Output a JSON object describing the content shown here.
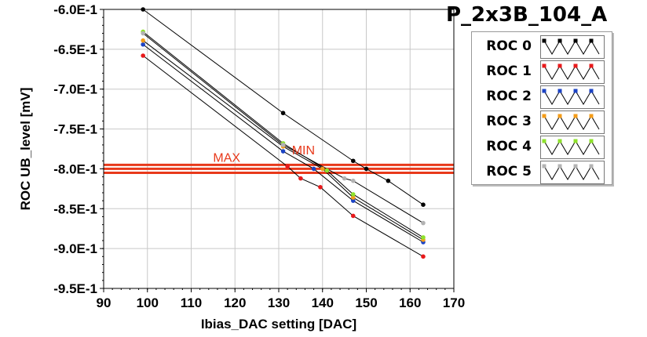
{
  "chart_data": {
    "type": "line",
    "title": "P_2x3B_104_A",
    "xlabel": "Ibias_DAC setting [DAC]",
    "ylabel": "ROC UB_level [mV]",
    "xlim": [
      90,
      170
    ],
    "ylim": [
      -0.95,
      -0.6
    ],
    "x_ticks": [
      "90",
      "100",
      "110",
      "120",
      "130",
      "140",
      "150",
      "160",
      "170"
    ],
    "y_ticks": [
      "-6.0E-1",
      "-6.5E-1",
      "-7.0E-1",
      "-7.5E-1",
      "-8.0E-1",
      "-8.5E-1",
      "-9.0E-1",
      "-9.5E-1"
    ],
    "grid": true,
    "legend_position": "right",
    "series": [
      {
        "name": "ROC 0",
        "color": "#000000",
        "points": [
          [
            99,
            -0.6
          ],
          [
            131,
            -0.73
          ],
          [
            147,
            -0.79
          ],
          [
            150,
            -0.8
          ],
          [
            155,
            -0.815
          ],
          [
            163,
            -0.845
          ]
        ]
      },
      {
        "name": "ROC 1",
        "color": "#e8191b",
        "points": [
          [
            99,
            -0.658
          ],
          [
            132,
            -0.797
          ],
          [
            135,
            -0.812
          ],
          [
            139.5,
            -0.823
          ],
          [
            147,
            -0.859
          ],
          [
            163,
            -0.91
          ]
        ]
      },
      {
        "name": "ROC 2",
        "color": "#1c43c4",
        "points": [
          [
            99,
            -0.644
          ],
          [
            131,
            -0.778
          ],
          [
            138,
            -0.8
          ],
          [
            147,
            -0.84
          ],
          [
            163,
            -0.892
          ]
        ]
      },
      {
        "name": "ROC 3",
        "color": "#f49c19",
        "points": [
          [
            99,
            -0.639
          ],
          [
            131,
            -0.772
          ],
          [
            140,
            -0.8
          ],
          [
            147,
            -0.836
          ],
          [
            163,
            -0.889
          ]
        ]
      },
      {
        "name": "ROC 4",
        "color": "#8ee12c",
        "points": [
          [
            99,
            -0.628
          ],
          [
            131,
            -0.768
          ],
          [
            141,
            -0.802
          ],
          [
            147,
            -0.832
          ],
          [
            163,
            -0.886
          ]
        ]
      },
      {
        "name": "ROC 5",
        "color": "#b3b3b3",
        "points": [
          [
            99,
            -0.63
          ],
          [
            131,
            -0.77
          ],
          [
            145,
            -0.812
          ],
          [
            147,
            -0.815
          ],
          [
            163,
            -0.868
          ]
        ]
      }
    ],
    "reference_lines": [
      {
        "y": -0.795,
        "color": "#e8391b"
      },
      {
        "y": -0.8,
        "color": "#e8391b"
      },
      {
        "y": -0.805,
        "color": "#e8391b"
      }
    ],
    "annotations": [
      {
        "text": "MAX",
        "x": 115,
        "y": -0.791,
        "color": "#e8391b"
      },
      {
        "text": "MIN",
        "x": 133,
        "y": -0.782,
        "color": "#e8391b"
      }
    ]
  }
}
